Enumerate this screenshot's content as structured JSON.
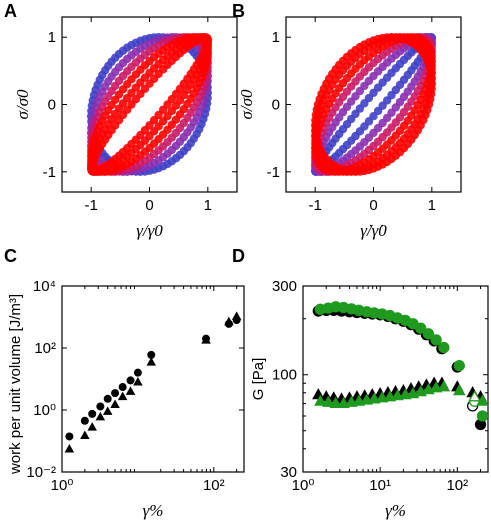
{
  "chart_data": [
    {
      "panel": "A",
      "type": "line",
      "description_kind": "elastic Lissajous loops",
      "xlabel": "γ/γ0",
      "ylabel": "σ/σ0",
      "xlim": [
        -1.5,
        1.5
      ],
      "ylim": [
        -1.3,
        1.3
      ],
      "xticks": [
        -1,
        0,
        1
      ],
      "yticks": [
        -1,
        0,
        1
      ],
      "colors": [
        "#ff0000",
        "#cc1a66",
        "#8a2fb0",
        "#4040c8"
      ],
      "series": [
        {
          "phase_lag_deg": 80,
          "color": "#4040c8"
        },
        {
          "phase_lag_deg": 65,
          "color": "#8a2fb0"
        },
        {
          "phase_lag_deg": 52,
          "color": "#cc1a66"
        },
        {
          "phase_lag_deg": 40,
          "color": "#ff0000"
        },
        {
          "phase_lag_deg": 28,
          "color": "#ff0000"
        },
        {
          "phase_lag_deg": 18,
          "color": "#ff0000"
        }
      ]
    },
    {
      "panel": "B",
      "type": "line",
      "description_kind": "viscous Lissajous loops",
      "xlabel": "γ̇/γ̇0",
      "ylabel": "σ/σ0",
      "xlim": [
        -1.5,
        1.5
      ],
      "ylim": [
        -1.3,
        1.3
      ],
      "xticks": [
        -1,
        0,
        1
      ],
      "yticks": [
        -1,
        0,
        1
      ],
      "colors": [
        "#ff0000",
        "#cc1a66",
        "#8a2fb0",
        "#4040c8"
      ],
      "series": [
        {
          "phase_lag_deg": 10,
          "color": "#4040c8"
        },
        {
          "phase_lag_deg": 25,
          "color": "#8a2fb0"
        },
        {
          "phase_lag_deg": 38,
          "color": "#cc1a66"
        },
        {
          "phase_lag_deg": 50,
          "color": "#ff0000"
        },
        {
          "phase_lag_deg": 62,
          "color": "#ff0000"
        },
        {
          "phase_lag_deg": 72,
          "color": "#ff0000"
        }
      ]
    },
    {
      "panel": "C",
      "type": "scatter",
      "xlabel": "γ%",
      "ylabel": "work per unit volume [J/m³]",
      "xscale": "log",
      "yscale": "log",
      "xlim": [
        1,
        250
      ],
      "ylim": [
        0.01,
        10000
      ],
      "xticks": [
        1,
        100
      ],
      "xtick_labels": [
        "10⁰",
        "10²"
      ],
      "yticks": [
        0.01,
        1,
        100,
        10000
      ],
      "ytick_labels": [
        "10⁻²",
        "10⁰",
        "10²",
        "10⁴"
      ],
      "series": [
        {
          "marker": "circle",
          "x": [
            1.25,
            2.0,
            2.5,
            3.2,
            4.0,
            5.0,
            6.3,
            8.0,
            10.0,
            15.0,
            79.0,
            158.0,
            200.0
          ],
          "y": [
            0.14,
            0.45,
            0.75,
            1.3,
            2.3,
            3.5,
            5.5,
            9.0,
            16.0,
            60.0,
            200.0,
            600.0,
            800.0
          ]
        },
        {
          "marker": "triangle",
          "x": [
            1.25,
            2.0,
            2.5,
            3.2,
            4.0,
            5.0,
            6.3,
            8.0,
            10.0,
            15.0,
            79.0,
            158.0,
            200.0
          ],
          "y": [
            0.055,
            0.15,
            0.28,
            0.6,
            0.9,
            1.5,
            2.7,
            4.0,
            8.0,
            35.0,
            180.0,
            700.0,
            1050.0
          ]
        }
      ]
    },
    {
      "panel": "D",
      "type": "scatter",
      "xlabel": "γ%",
      "ylabel": "G [Pa]",
      "xscale": "log",
      "yscale": "log",
      "xlim": [
        1,
        250
      ],
      "ylim": [
        30,
        300
      ],
      "xticks": [
        1,
        10,
        100
      ],
      "xtick_labels": [
        "10⁰",
        "10¹",
        "10²"
      ],
      "yticks": [
        30,
        100,
        300
      ],
      "ytick_labels": [
        "30",
        "100",
        "300"
      ],
      "series": [
        {
          "marker": "circle",
          "fill": "#000000",
          "x": [
            1.58,
            2.0,
            2.5,
            3.16,
            4.0,
            5.0,
            6.3,
            7.9,
            10.0,
            12.6,
            15.8,
            20.0,
            25.1,
            31.6,
            39.8,
            50.1,
            63.1,
            100.0,
            158.0,
            200.0
          ],
          "y": [
            220,
            222,
            222,
            220,
            218,
            216,
            214,
            212,
            210,
            206,
            200,
            194,
            186,
            176,
            164,
            152,
            138,
            110,
            68,
            54
          ]
        },
        {
          "marker": "circle",
          "fill": "#1f9a1f",
          "x": [
            1.58,
            2.0,
            2.5,
            3.16,
            4.0,
            5.0,
            6.3,
            7.9,
            10.0,
            12.6,
            15.8,
            20.0,
            25.1,
            31.6,
            39.8,
            50.1,
            63.1,
            100.0,
            158.0,
            200.0
          ],
          "y": [
            225,
            228,
            232,
            230,
            226,
            222,
            218,
            215,
            212,
            208,
            202,
            196,
            188,
            178,
            166,
            154,
            140,
            112,
            72,
            60
          ]
        },
        {
          "marker": "triangle",
          "fill": "#000000",
          "x": [
            1.58,
            2.0,
            2.5,
            3.16,
            4.0,
            5.0,
            6.3,
            7.9,
            10.0,
            12.6,
            15.8,
            20.0,
            25.1,
            31.6,
            39.8,
            50.1,
            63.1,
            100.0,
            158.0,
            200.0
          ],
          "y": [
            78,
            76,
            75,
            74,
            75,
            76,
            77,
            78,
            79,
            80,
            81,
            82,
            84,
            86,
            88,
            90,
            90,
            86,
            80,
            76
          ]
        },
        {
          "marker": "triangle",
          "fill": "#1f9a1f",
          "x": [
            1.58,
            2.0,
            2.5,
            3.16,
            4.0,
            5.0,
            6.3,
            7.9,
            10.0,
            12.6,
            15.8,
            20.0,
            25.1,
            31.6,
            39.8,
            50.1,
            63.1,
            100.0,
            158.0,
            200.0
          ],
          "y": [
            72,
            71,
            70,
            70,
            71,
            72,
            73,
            74,
            75,
            76,
            77,
            78,
            79,
            81,
            83,
            85,
            86,
            82,
            76,
            72
          ]
        }
      ]
    }
  ]
}
